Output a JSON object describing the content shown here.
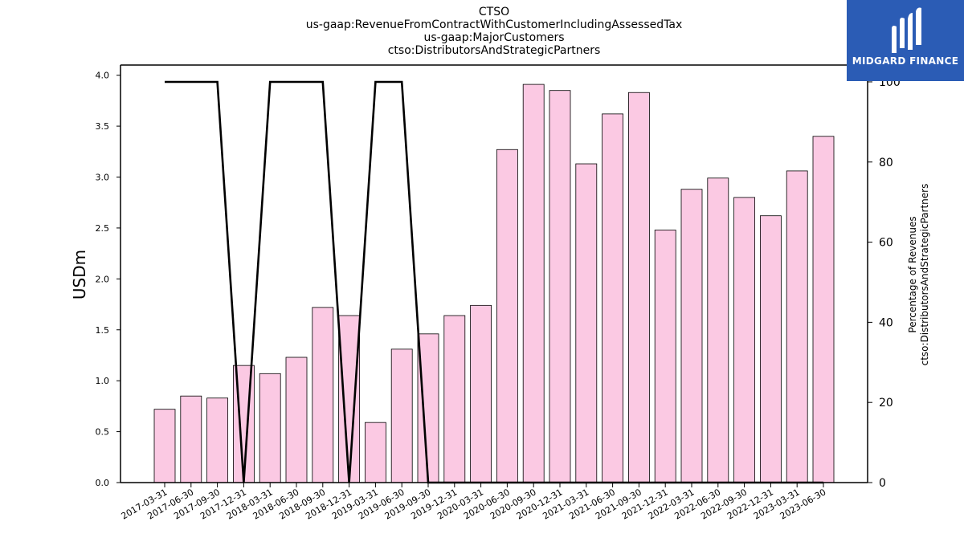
{
  "title_lines": [
    "CTSO",
    "us-gaap:RevenueFromContractWithCustomerIncludingAssessedTax",
    "us-gaap:MajorCustomers",
    "ctso:DistributorsAndStrategicPartners"
  ],
  "logo": {
    "text": "MIDGARD FINANCE",
    "color": "#2b5cb5"
  },
  "chart_data": {
    "type": "bar",
    "categories": [
      "2017-03-31",
      "2017-06-30",
      "2017-09-30",
      "2017-12-31",
      "2018-03-31",
      "2018-06-30",
      "2018-09-30",
      "2018-12-31",
      "2019-03-31",
      "2019-06-30",
      "2019-09-30",
      "2019-12-31",
      "2020-03-31",
      "2020-06-30",
      "2020-09-30",
      "2020-12-31",
      "2021-03-31",
      "2021-06-30",
      "2021-09-30",
      "2021-12-31",
      "2022-03-31",
      "2022-06-30",
      "2022-09-30",
      "2022-12-31",
      "2023-03-31",
      "2023-06-30"
    ],
    "series": [
      {
        "type": "bar",
        "axis": "left",
        "color": "#fbc9e3",
        "values": [
          0.72,
          0.85,
          0.83,
          1.15,
          1.07,
          1.23,
          1.72,
          1.64,
          0.59,
          1.31,
          1.46,
          1.64,
          1.74,
          3.27,
          3.91,
          3.85,
          3.13,
          3.62,
          3.83,
          2.48,
          2.88,
          2.99,
          2.8,
          2.62,
          3.06,
          3.4
        ]
      },
      {
        "type": "line",
        "axis": "right",
        "color": "#000000",
        "values": [
          100,
          100,
          100,
          0,
          100,
          100,
          100,
          0,
          100,
          100,
          0,
          0,
          0,
          0,
          0,
          0,
          0,
          0,
          0,
          0,
          0,
          0,
          0,
          0,
          0,
          0
        ]
      }
    ],
    "ylabel": "USDm",
    "ylabel_right": [
      "Percentage of Revenues",
      "ctso:DistributorsAndStrategicPartners"
    ],
    "ylim": [
      0,
      4.1
    ],
    "yticks": [
      "0.0",
      "0.5",
      "1.0",
      "1.5",
      "2.0",
      "2.5",
      "3.0",
      "3.5",
      "4.0"
    ],
    "ylim_right": [
      0,
      104.2
    ],
    "yticks_right": [
      "0",
      "20",
      "40",
      "60",
      "80",
      "100"
    ],
    "grid": false
  }
}
